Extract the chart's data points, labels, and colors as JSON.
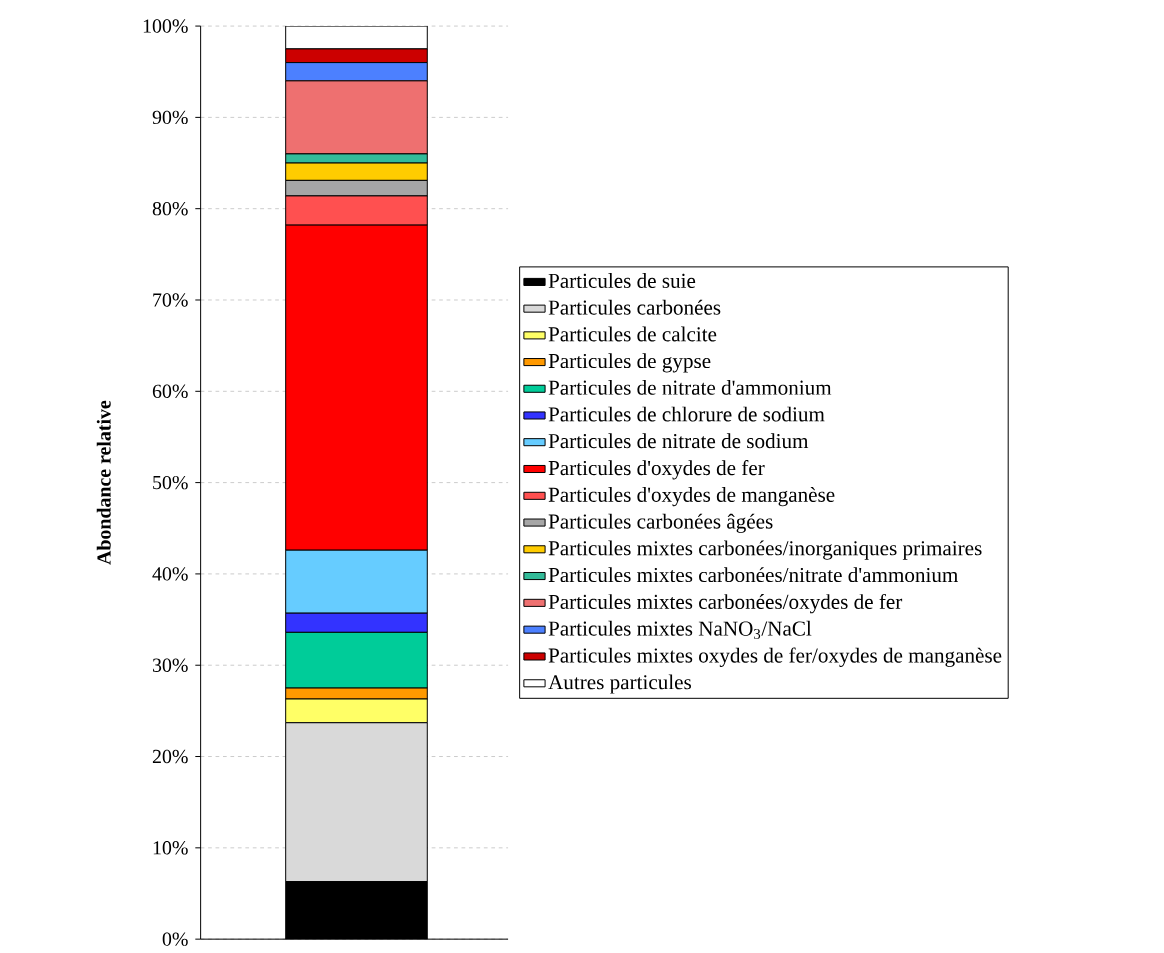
{
  "chart_data": {
    "type": "bar",
    "stacked": true,
    "ylabel": "Abondance relative",
    "categories": [
      null
    ],
    "ylim": [
      0,
      100
    ],
    "yticks": [
      {
        "value": 0,
        "label": "0%"
      },
      {
        "value": 10,
        "label": "10%"
      },
      {
        "value": 20,
        "label": "20%"
      },
      {
        "value": 30,
        "label": "30%"
      },
      {
        "value": 40,
        "label": "40%"
      },
      {
        "value": 50,
        "label": "50%"
      },
      {
        "value": 60,
        "label": "60%"
      },
      {
        "value": 70,
        "label": "70%"
      },
      {
        "value": 80,
        "label": "80%"
      },
      {
        "value": 90,
        "label": "90%"
      },
      {
        "value": 100,
        "label": "100%"
      }
    ],
    "grid": "y",
    "legend": "right",
    "series": [
      {
        "name": "Particules de suie",
        "color": "#000000",
        "values": [
          6.3
        ]
      },
      {
        "name": "Particules carbonées",
        "color": "#d9d9d9",
        "values": [
          17.4
        ]
      },
      {
        "name": "Particules de calcite",
        "color": "#ffff66",
        "values": [
          2.6
        ]
      },
      {
        "name": "Particules de gypse",
        "color": "#ff9900",
        "values": [
          1.2
        ]
      },
      {
        "name": "Particules de nitrate d'ammonium",
        "color": "#00cc99",
        "values": [
          6.1
        ]
      },
      {
        "name": "Particules de chlorure de sodium",
        "color": "#3333ff",
        "values": [
          2.1
        ]
      },
      {
        "name": "Particules de nitrate de sodium",
        "color": "#66ccff",
        "values": [
          6.9
        ]
      },
      {
        "name": "Particules d'oxydes de fer",
        "color": "#ff0000",
        "values": [
          35.6
        ]
      },
      {
        "name": "Particules d'oxydes de manganèse",
        "color": "#ff5050",
        "values": [
          3.2
        ]
      },
      {
        "name": "Particules carbonées âgées",
        "color": "#a6a6a6",
        "values": [
          1.7
        ]
      },
      {
        "name": "Particules mixtes carbonées/inorganiques primaires",
        "color": "#ffcc00",
        "values": [
          1.9
        ]
      },
      {
        "name": "Particules mixtes carbonées/nitrate d'ammonium",
        "color": "#33bb99",
        "values": [
          1.0
        ]
      },
      {
        "name": "Particules mixtes carbonées/oxydes de fer",
        "color": "#ee7070",
        "values": [
          8.0
        ]
      },
      {
        "name": "Particules mixtes NaNO$_{3}$/NaCl",
        "color": "#4c80ff",
        "values": [
          2.0
        ]
      },
      {
        "name": "Particules mixtes oxydes de fer/oxydes de manganèse",
        "color": "#cc0000",
        "values": [
          1.5
        ]
      },
      {
        "name": "Autres particules",
        "color": "#ffffff",
        "values": [
          2.5
        ]
      }
    ]
  }
}
